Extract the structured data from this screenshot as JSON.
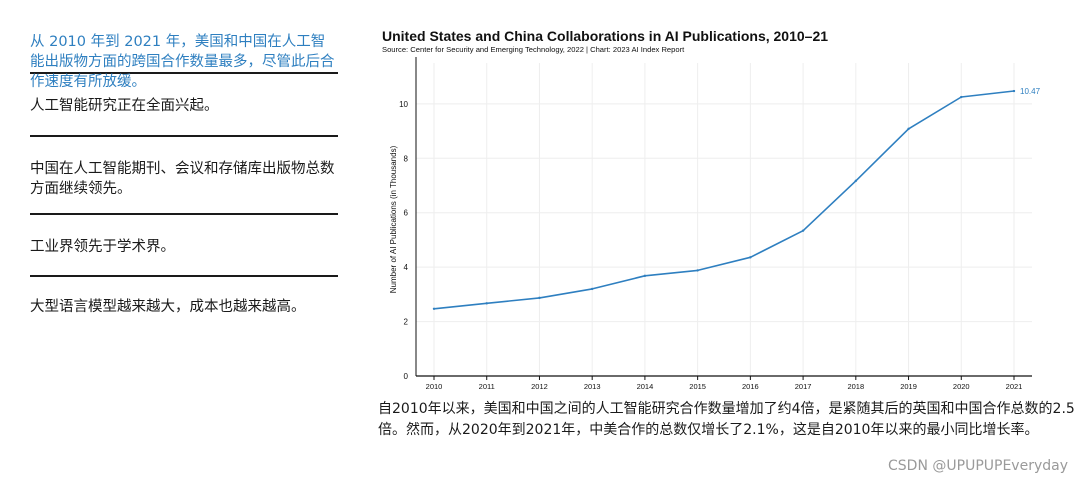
{
  "sidebar": {
    "highlight": "从 2010 年到 2021 年，美国和中国在人工智能出版物方面的跨国合作数量最多，尽管此后合作速度有所放缓。",
    "items": [
      "人工智能研究正在全面兴起。",
      "中国在人工智能期刊、会议和存储库出版物总数方面继续领先。",
      "工业界领先于学术界。",
      "大型语言模型越来越大，成本也越来越高。"
    ]
  },
  "caption": "自2010年以来，美国和中国之间的人工智能研究合作数量增加了约4倍，是紧随其后的英国和中国合作总数的2.5倍。然而，从2020年到2021年，中美合作的总数仅增长了2.1%，这是自2010年以来的最小同比增长率。",
  "watermark": "CSDN @UPUPUPEveryday",
  "colors": {
    "line": "#2e7fc0",
    "highlight_text": "#2e7fc0"
  },
  "chart_data": {
    "type": "line",
    "title": "United States and China Collaborations in AI Publications, 2010–21",
    "subtitle": "Source: Center for Security and Emerging Technology, 2022 | Chart: 2023 AI Index Report",
    "xlabel": "",
    "ylabel": "Number of AI Publications (in Thousands)",
    "x": [
      2010,
      2011,
      2012,
      2013,
      2014,
      2015,
      2016,
      2017,
      2018,
      2019,
      2020,
      2021
    ],
    "series": [
      {
        "values": [
          2.47,
          2.67,
          2.87,
          3.2,
          3.68,
          3.88,
          4.36,
          5.34,
          7.17,
          9.08,
          10.25,
          10.47
        ]
      }
    ],
    "end_label": "10.47",
    "xticks": [
      "2010",
      "2011",
      "2012",
      "2013",
      "2014",
      "2015",
      "2016",
      "2017",
      "2018",
      "2019",
      "2020",
      "2021"
    ],
    "yticks": [
      "0",
      "2",
      "4",
      "6",
      "8",
      "10"
    ],
    "ylim": [
      0,
      11.5
    ],
    "grid": true
  }
}
